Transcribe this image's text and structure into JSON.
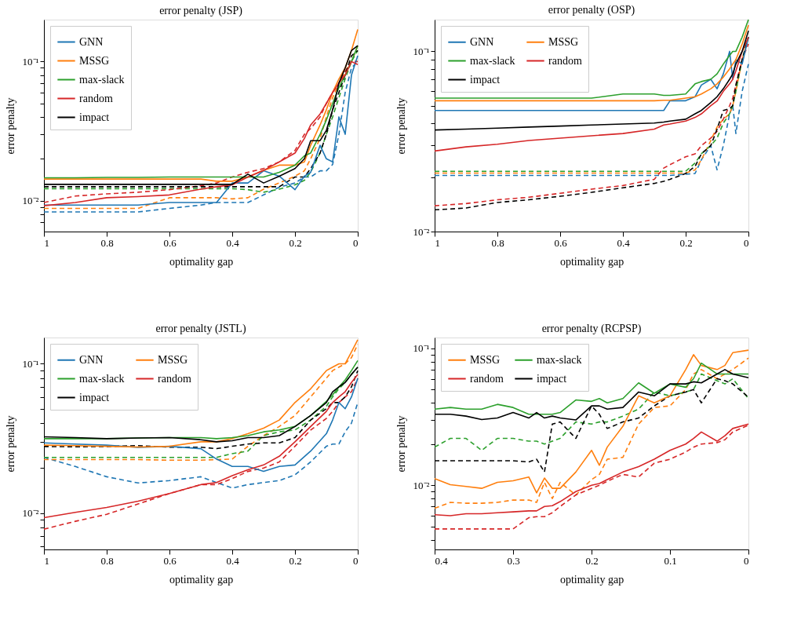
{
  "chart_data": [
    {
      "type": "line",
      "title": "error penalty (JSP)",
      "xlabel": "optimality gap",
      "ylabel": "error penalty",
      "log": true,
      "grid": false,
      "legend": "top left",
      "xlim": [
        1,
        0
      ],
      "xticks": [
        1,
        0.8,
        0.6,
        0.4,
        0.2,
        0
      ],
      "ylim": [
        0.006,
        0.2
      ],
      "yticks": [
        {
          "value": 0.007,
          "label": null
        },
        {
          "value": 0.008,
          "label": null
        },
        {
          "value": 0.009,
          "label": null
        },
        {
          "value": 0.01,
          "label": "10⁻²"
        },
        {
          "value": 0.02,
          "label": null
        },
        {
          "value": 0.03,
          "label": null
        },
        {
          "value": 0.04,
          "label": null
        },
        {
          "value": 0.05,
          "label": null
        },
        {
          "value": 0.06,
          "label": null
        },
        {
          "value": 0.07,
          "label": null
        },
        {
          "value": 0.08,
          "label": null
        },
        {
          "value": 0.09,
          "label": null
        },
        {
          "value": 0.1,
          "label": "10⁻¹"
        }
      ],
      "x": [
        1,
        0.9,
        0.8,
        0.7,
        0.6,
        0.5,
        0.45,
        0.4,
        0.35,
        0.3,
        0.25,
        0.2,
        0.17,
        0.15,
        0.12,
        0.1,
        0.08,
        0.06,
        0.04,
        0.02,
        0
      ],
      "series": [
        {
          "color": "#1f77b4",
          "line_style": "dashed",
          "values": [
            0.0083,
            0.0083,
            0.0083,
            0.0083,
            0.0088,
            0.0093,
            0.0097,
            0.0097,
            0.0097,
            0.011,
            0.0125,
            0.0134,
            0.0148,
            0.0148,
            0.0164,
            0.0164,
            0.0182,
            0.03,
            0.06,
            0.09,
            0.1
          ]
        },
        {
          "color": "#ff7f0e",
          "line_style": "dashed",
          "values": [
            0.0088,
            0.0088,
            0.0088,
            0.0088,
            0.0105,
            0.0105,
            0.0105,
            0.0103,
            0.0105,
            0.0121,
            0.0134,
            0.015,
            0.0164,
            0.02,
            0.028,
            0.04,
            0.055,
            0.07,
            0.085,
            0.1,
            0.13
          ]
        },
        {
          "color": "#2ca02c",
          "line_style": "dashed",
          "values": [
            0.0122,
            0.0122,
            0.0122,
            0.0122,
            0.0122,
            0.0122,
            0.0122,
            0.0122,
            0.012,
            0.0115,
            0.0121,
            0.013,
            0.014,
            0.016,
            0.022,
            0.03,
            0.04,
            0.055,
            0.075,
            0.1,
            0.12
          ]
        },
        {
          "color": "#d62728",
          "line_style": "dashed",
          "values": [
            0.0097,
            0.0108,
            0.0112,
            0.0115,
            0.012,
            0.0128,
            0.0134,
            0.0148,
            0.016,
            0.017,
            0.019,
            0.023,
            0.03,
            0.033,
            0.04,
            0.05,
            0.06,
            0.07,
            0.085,
            0.1,
            0.1
          ]
        },
        {
          "color": "#000000",
          "line_style": "dashed",
          "values": [
            0.0126,
            0.0126,
            0.0126,
            0.0126,
            0.0126,
            0.0126,
            0.0126,
            0.0126,
            0.0126,
            0.0126,
            0.0126,
            0.0148,
            0.0148,
            0.017,
            0.022,
            0.03,
            0.045,
            0.06,
            0.08,
            0.11,
            0.12
          ]
        },
        {
          "name": "GNN",
          "color": "#1f77b4",
          "line_style": "solid",
          "values": [
            0.0093,
            0.0093,
            0.0093,
            0.0093,
            0.0097,
            0.0097,
            0.0097,
            0.0134,
            0.0134,
            0.0164,
            0.015,
            0.012,
            0.015,
            0.016,
            0.025,
            0.02,
            0.019,
            0.04,
            0.03,
            0.08,
            0.11
          ]
        },
        {
          "name": "MSSG",
          "color": "#ff7f0e",
          "line_style": "solid",
          "values": [
            0.0143,
            0.0143,
            0.0143,
            0.0143,
            0.0143,
            0.0143,
            0.0138,
            0.0138,
            0.0148,
            0.0165,
            0.018,
            0.018,
            0.019,
            0.025,
            0.035,
            0.045,
            0.06,
            0.075,
            0.09,
            0.12,
            0.17
          ]
        },
        {
          "name": "max-slack",
          "color": "#2ca02c",
          "line_style": "solid",
          "values": [
            0.0146,
            0.0146,
            0.0147,
            0.0147,
            0.0148,
            0.0148,
            0.0148,
            0.0148,
            0.0148,
            0.0148,
            0.016,
            0.018,
            0.021,
            0.022,
            0.03,
            0.038,
            0.05,
            0.065,
            0.08,
            0.1,
            0.13
          ]
        },
        {
          "name": "random",
          "color": "#d62728",
          "line_style": "solid",
          "values": [
            0.0092,
            0.0097,
            0.0105,
            0.0107,
            0.011,
            0.0121,
            0.0126,
            0.013,
            0.0148,
            0.0165,
            0.019,
            0.022,
            0.028,
            0.035,
            0.042,
            0.05,
            0.06,
            0.07,
            0.08,
            0.1,
            0.095
          ]
        },
        {
          "name": "impact",
          "color": "#000000",
          "line_style": "solid",
          "values": [
            0.0131,
            0.0131,
            0.0131,
            0.0131,
            0.0131,
            0.0131,
            0.0131,
            0.0131,
            0.0155,
            0.0134,
            0.015,
            0.017,
            0.02,
            0.027,
            0.027,
            0.032,
            0.045,
            0.07,
            0.09,
            0.12,
            0.13
          ]
        }
      ]
    },
    {
      "type": "line",
      "title": "error penalty (OSP)",
      "xlabel": "optimality gap",
      "ylabel": "error penalty",
      "log": true,
      "grid": false,
      "legend": "top left",
      "xlim": [
        1,
        0
      ],
      "xticks": [
        1,
        0.8,
        0.6,
        0.4,
        0.2,
        0
      ],
      "ylim": [
        0.01,
        0.15
      ],
      "yticks": [
        {
          "value": 0.01,
          "label": "10⁻²"
        },
        {
          "value": 0.02,
          "label": null
        },
        {
          "value": 0.03,
          "label": null
        },
        {
          "value": 0.04,
          "label": null
        },
        {
          "value": 0.05,
          "label": null
        },
        {
          "value": 0.06,
          "label": null
        },
        {
          "value": 0.07,
          "label": null
        },
        {
          "value": 0.08,
          "label": null
        },
        {
          "value": 0.09,
          "label": null
        },
        {
          "value": 0.1,
          "label": "10⁻¹"
        }
      ],
      "x": [
        1,
        0.9,
        0.8,
        0.7,
        0.6,
        0.5,
        0.4,
        0.3,
        0.27,
        0.25,
        0.2,
        0.17,
        0.15,
        0.12,
        0.1,
        0.08,
        0.06,
        0.05,
        0.04,
        0.02,
        0
      ],
      "series": [
        {
          "color": "#1f77b4",
          "line_style": "dashed",
          "values": [
            0.0205,
            0.0205,
            0.0205,
            0.0205,
            0.0205,
            0.0205,
            0.0205,
            0.0205,
            0.0205,
            0.0205,
            0.0208,
            0.021,
            0.025,
            0.03,
            0.022,
            0.03,
            0.045,
            0.05,
            0.035,
            0.06,
            0.085
          ]
        },
        {
          "color": "#ff7f0e",
          "line_style": "dashed",
          "values": [
            0.0211,
            0.0211,
            0.0211,
            0.0211,
            0.0211,
            0.0211,
            0.0211,
            0.0211,
            0.0211,
            0.0211,
            0.0211,
            0.022,
            0.025,
            0.032,
            0.038,
            0.042,
            0.045,
            0.05,
            0.06,
            0.09,
            0.12
          ]
        },
        {
          "color": "#2ca02c",
          "line_style": "dashed",
          "values": [
            0.0216,
            0.0216,
            0.0216,
            0.0216,
            0.0216,
            0.0216,
            0.0216,
            0.0216,
            0.0216,
            0.0216,
            0.0216,
            0.024,
            0.027,
            0.03,
            0.033,
            0.04,
            0.045,
            0.05,
            0.06,
            0.09,
            0.12
          ]
        },
        {
          "color": "#d62728",
          "line_style": "dashed",
          "values": [
            0.0139,
            0.0143,
            0.015,
            0.0155,
            0.0163,
            0.0172,
            0.018,
            0.0195,
            0.0225,
            0.0235,
            0.026,
            0.027,
            0.03,
            0.033,
            0.036,
            0.042,
            0.05,
            0.055,
            0.065,
            0.09,
            0.11
          ]
        },
        {
          "color": "#000000",
          "line_style": "dashed",
          "values": [
            0.0132,
            0.0135,
            0.0145,
            0.015,
            0.0157,
            0.0165,
            0.0175,
            0.0185,
            0.019,
            0.0195,
            0.021,
            0.023,
            0.027,
            0.03,
            0.037,
            0.047,
            0.048,
            0.05,
            0.065,
            0.09,
            0.12
          ]
        },
        {
          "name": "GNN",
          "color": "#1f77b4",
          "line_style": "solid",
          "values": [
            0.047,
            0.047,
            0.047,
            0.047,
            0.047,
            0.047,
            0.047,
            0.047,
            0.047,
            0.0532,
            0.0532,
            0.056,
            0.065,
            0.07,
            0.062,
            0.075,
            0.1,
            0.07,
            0.09,
            0.085,
            0.12
          ]
        },
        {
          "name": "MSSG",
          "color": "#ff7f0e",
          "line_style": "solid",
          "values": [
            0.0532,
            0.0532,
            0.0532,
            0.0532,
            0.0532,
            0.0532,
            0.0532,
            0.0532,
            0.0535,
            0.0535,
            0.055,
            0.056,
            0.058,
            0.062,
            0.066,
            0.072,
            0.08,
            0.085,
            0.09,
            0.11,
            0.14
          ]
        },
        {
          "name": "max-slack",
          "color": "#2ca02c",
          "line_style": "solid",
          "values": [
            0.055,
            0.055,
            0.055,
            0.055,
            0.055,
            0.055,
            0.058,
            0.058,
            0.057,
            0.057,
            0.058,
            0.066,
            0.068,
            0.07,
            0.075,
            0.085,
            0.095,
            0.1,
            0.1,
            0.12,
            0.15
          ]
        },
        {
          "name": "random",
          "color": "#d62728",
          "line_style": "solid",
          "values": [
            0.028,
            0.0295,
            0.0305,
            0.032,
            0.033,
            0.034,
            0.035,
            0.037,
            0.039,
            0.0395,
            0.041,
            0.043,
            0.045,
            0.05,
            0.053,
            0.06,
            0.066,
            0.07,
            0.078,
            0.1,
            0.12
          ]
        },
        {
          "name": "impact",
          "color": "#000000",
          "line_style": "solid",
          "values": [
            0.0366,
            0.037,
            0.0375,
            0.038,
            0.0385,
            0.039,
            0.0395,
            0.04,
            0.0405,
            0.041,
            0.042,
            0.045,
            0.047,
            0.052,
            0.056,
            0.062,
            0.07,
            0.075,
            0.085,
            0.1,
            0.13
          ]
        }
      ]
    },
    {
      "type": "line",
      "title": "error penalty (JSTL)",
      "xlabel": "optimality gap",
      "ylabel": "error penalty",
      "log": true,
      "grid": false,
      "legend": "top left",
      "xlim": [
        1,
        0
      ],
      "xticks": [
        1,
        0.8,
        0.6,
        0.4,
        0.2,
        0
      ],
      "ylim": [
        0.0057,
        0.15
      ],
      "yticks": [
        {
          "value": 0.006,
          "label": null
        },
        {
          "value": 0.007,
          "label": null
        },
        {
          "value": 0.008,
          "label": null
        },
        {
          "value": 0.009,
          "label": null
        },
        {
          "value": 0.01,
          "label": "10⁻²"
        },
        {
          "value": 0.02,
          "label": null
        },
        {
          "value": 0.03,
          "label": null
        },
        {
          "value": 0.04,
          "label": null
        },
        {
          "value": 0.05,
          "label": null
        },
        {
          "value": 0.06,
          "label": null
        },
        {
          "value": 0.07,
          "label": null
        },
        {
          "value": 0.08,
          "label": null
        },
        {
          "value": 0.09,
          "label": null
        },
        {
          "value": 0.1,
          "label": "10⁻¹"
        }
      ],
      "x": [
        1,
        0.9,
        0.8,
        0.7,
        0.6,
        0.5,
        0.45,
        0.4,
        0.35,
        0.3,
        0.25,
        0.2,
        0.15,
        0.1,
        0.08,
        0.06,
        0.04,
        0.02,
        0
      ],
      "series": [
        {
          "color": "#1f77b4",
          "line_style": "dashed",
          "values": [
            0.0236,
            0.0205,
            0.0175,
            0.0159,
            0.0165,
            0.0175,
            0.016,
            0.0147,
            0.0155,
            0.016,
            0.0165,
            0.018,
            0.022,
            0.028,
            0.029,
            0.029,
            0.035,
            0.04,
            0.055
          ]
        },
        {
          "color": "#ff7f0e",
          "line_style": "dashed",
          "values": [
            0.0228,
            0.0228,
            0.0228,
            0.0228,
            0.0226,
            0.0226,
            0.0228,
            0.023,
            0.028,
            0.033,
            0.038,
            0.045,
            0.06,
            0.08,
            0.09,
            0.095,
            0.1,
            0.11,
            0.135
          ]
        },
        {
          "color": "#2ca02c",
          "line_style": "dashed",
          "values": [
            0.0236,
            0.0236,
            0.0236,
            0.0236,
            0.0236,
            0.0236,
            0.0236,
            0.025,
            0.026,
            0.033,
            0.035,
            0.036,
            0.042,
            0.052,
            0.06,
            0.068,
            0.075,
            0.085,
            0.095
          ]
        },
        {
          "color": "#d62728",
          "line_style": "dashed",
          "values": [
            0.0078,
            0.0088,
            0.0098,
            0.0115,
            0.0135,
            0.0155,
            0.0155,
            0.017,
            0.019,
            0.02,
            0.022,
            0.028,
            0.036,
            0.043,
            0.048,
            0.055,
            0.06,
            0.065,
            0.08
          ]
        },
        {
          "color": "#000000",
          "line_style": "dashed",
          "values": [
            0.0279,
            0.0278,
            0.0279,
            0.0283,
            0.0276,
            0.0276,
            0.027,
            0.028,
            0.029,
            0.0295,
            0.0295,
            0.032,
            0.042,
            0.05,
            0.055,
            0.055,
            0.06,
            0.07,
            0.09
          ]
        },
        {
          "name": "GNN",
          "color": "#1f77b4",
          "line_style": "solid",
          "values": [
            0.0295,
            0.029,
            0.0285,
            0.0275,
            0.028,
            0.027,
            0.023,
            0.0205,
            0.0205,
            0.019,
            0.0205,
            0.021,
            0.026,
            0.034,
            0.042,
            0.055,
            0.05,
            0.06,
            0.08
          ]
        },
        {
          "name": "MSSG",
          "color": "#ff7f0e",
          "line_style": "solid",
          "values": [
            0.0285,
            0.0283,
            0.028,
            0.0277,
            0.028,
            0.03,
            0.03,
            0.0315,
            0.034,
            0.037,
            0.042,
            0.055,
            0.068,
            0.09,
            0.095,
            0.1,
            0.1,
            0.12,
            0.145
          ]
        },
        {
          "name": "max-slack",
          "color": "#2ca02c",
          "line_style": "solid",
          "values": [
            0.0315,
            0.0315,
            0.0315,
            0.0318,
            0.032,
            0.032,
            0.0315,
            0.032,
            0.033,
            0.035,
            0.036,
            0.038,
            0.045,
            0.056,
            0.062,
            0.07,
            0.078,
            0.09,
            0.105
          ]
        },
        {
          "name": "random",
          "color": "#d62728",
          "line_style": "solid",
          "values": [
            0.0093,
            0.0101,
            0.0109,
            0.012,
            0.0135,
            0.0155,
            0.016,
            0.0178,
            0.0195,
            0.021,
            0.024,
            0.03,
            0.038,
            0.048,
            0.055,
            0.06,
            0.065,
            0.075,
            0.085
          ]
        },
        {
          "name": "impact",
          "color": "#000000",
          "line_style": "solid",
          "values": [
            0.0324,
            0.032,
            0.0315,
            0.0318,
            0.032,
            0.031,
            0.03,
            0.0305,
            0.032,
            0.032,
            0.033,
            0.038,
            0.045,
            0.055,
            0.065,
            0.07,
            0.075,
            0.085,
            0.095
          ]
        }
      ]
    },
    {
      "type": "line",
      "title": "error penalty (RCPSP)",
      "xlabel": "optimality gap",
      "ylabel": "error penalty",
      "log": true,
      "grid": false,
      "legend": "top left",
      "xlim": [
        0.4,
        0
      ],
      "xticks": [
        0.4,
        0.3,
        0.2,
        0.1,
        0
      ],
      "ylim": [
        0.0034,
        0.12
      ],
      "yticks": [
        {
          "value": 0.004,
          "label": null
        },
        {
          "value": 0.005,
          "label": null
        },
        {
          "value": 0.006,
          "label": null
        },
        {
          "value": 0.007,
          "label": null
        },
        {
          "value": 0.008,
          "label": null
        },
        {
          "value": 0.009,
          "label": null
        },
        {
          "value": 0.01,
          "label": "10⁻²"
        },
        {
          "value": 0.02,
          "label": null
        },
        {
          "value": 0.03,
          "label": null
        },
        {
          "value": 0.04,
          "label": null
        },
        {
          "value": 0.05,
          "label": null
        },
        {
          "value": 0.06,
          "label": null
        },
        {
          "value": 0.07,
          "label": null
        },
        {
          "value": 0.08,
          "label": null
        },
        {
          "value": 0.09,
          "label": null
        },
        {
          "value": 0.1,
          "label": "10⁻¹"
        }
      ],
      "x": [
        0.4,
        0.38,
        0.36,
        0.34,
        0.32,
        0.3,
        0.28,
        0.27,
        0.26,
        0.25,
        0.24,
        0.22,
        0.2,
        0.19,
        0.18,
        0.16,
        0.14,
        0.12,
        0.1,
        0.08,
        0.07,
        0.06,
        0.04,
        0.03,
        0.02,
        0
      ],
      "series": [
        {
          "color": "#ff7f0e",
          "line_style": "dashed",
          "values": [
            0.0068,
            0.0075,
            0.0074,
            0.0074,
            0.0075,
            0.0078,
            0.0078,
            0.0075,
            0.0105,
            0.008,
            0.0105,
            0.0085,
            0.011,
            0.012,
            0.0155,
            0.016,
            0.028,
            0.037,
            0.038,
            0.05,
            0.065,
            0.07,
            0.06,
            0.065,
            0.07,
            0.085
          ]
        },
        {
          "color": "#2ca02c",
          "line_style": "dashed",
          "values": [
            0.019,
            0.022,
            0.022,
            0.018,
            0.022,
            0.022,
            0.021,
            0.021,
            0.02,
            0.021,
            0.022,
            0.029,
            0.028,
            0.029,
            0.029,
            0.032,
            0.036,
            0.048,
            0.045,
            0.048,
            0.05,
            0.065,
            0.058,
            0.055,
            0.06,
            0.043
          ]
        },
        {
          "color": "#d62728",
          "line_style": "dashed",
          "values": [
            0.0048,
            0.0048,
            0.0048,
            0.0048,
            0.0048,
            0.0048,
            0.0058,
            0.0059,
            0.0059,
            0.0063,
            0.007,
            0.0085,
            0.0095,
            0.01,
            0.0107,
            0.012,
            0.0115,
            0.0145,
            0.0155,
            0.0175,
            0.019,
            0.02,
            0.0205,
            0.0215,
            0.0245,
            0.0275
          ]
        },
        {
          "color": "#000000",
          "line_style": "dashed",
          "values": [
            0.0151,
            0.0151,
            0.0151,
            0.0151,
            0.0151,
            0.0151,
            0.0148,
            0.0155,
            0.0125,
            0.028,
            0.029,
            0.022,
            0.038,
            0.033,
            0.026,
            0.029,
            0.031,
            0.038,
            0.045,
            0.048,
            0.05,
            0.04,
            0.06,
            0.058,
            0.055,
            0.044
          ]
        },
        {
          "name": "MSSG",
          "color": "#ff7f0e",
          "line_style": "solid",
          "values": [
            0.0112,
            0.0101,
            0.0098,
            0.0095,
            0.0105,
            0.0108,
            0.0115,
            0.0088,
            0.0113,
            0.0095,
            0.0095,
            0.0125,
            0.018,
            0.014,
            0.019,
            0.027,
            0.045,
            0.04,
            0.045,
            0.07,
            0.09,
            0.075,
            0.07,
            0.075,
            0.093,
            0.097
          ]
        },
        {
          "name": "max-slack",
          "color": "#2ca02c",
          "line_style": "solid",
          "values": [
            0.036,
            0.037,
            0.036,
            0.036,
            0.039,
            0.037,
            0.033,
            0.033,
            0.033,
            0.033,
            0.034,
            0.042,
            0.041,
            0.043,
            0.04,
            0.043,
            0.056,
            0.047,
            0.055,
            0.052,
            0.06,
            0.078,
            0.065,
            0.065,
            0.065,
            0.065
          ]
        },
        {
          "name": "random",
          "color": "#d62728",
          "line_style": "solid",
          "values": [
            0.0061,
            0.006,
            0.0062,
            0.0062,
            0.0063,
            0.0064,
            0.0065,
            0.0065,
            0.007,
            0.0071,
            0.0076,
            0.009,
            0.01,
            0.0103,
            0.011,
            0.0125,
            0.0137,
            0.0155,
            0.018,
            0.02,
            0.022,
            0.0245,
            0.021,
            0.023,
            0.026,
            0.028
          ]
        },
        {
          "name": "impact",
          "color": "#000000",
          "line_style": "solid",
          "values": [
            0.033,
            0.033,
            0.032,
            0.0302,
            0.031,
            0.034,
            0.031,
            0.034,
            0.031,
            0.032,
            0.031,
            0.03,
            0.038,
            0.038,
            0.036,
            0.037,
            0.048,
            0.045,
            0.055,
            0.055,
            0.057,
            0.056,
            0.065,
            0.07,
            0.065,
            0.061
          ]
        }
      ]
    }
  ]
}
